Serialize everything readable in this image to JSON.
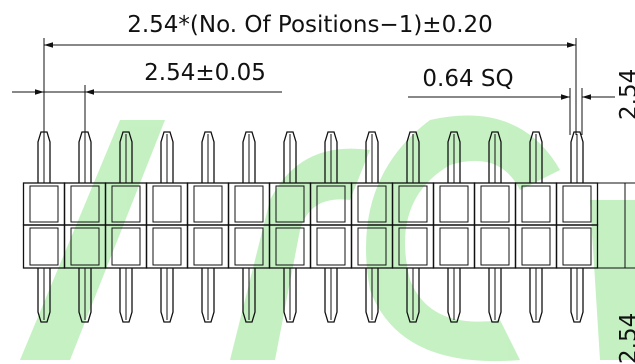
{
  "dimensions": {
    "overall": "2.54*(No. Of Positions−1)±0.20",
    "pitch": "2.54±0.05",
    "pin_size": "0.64 SQ",
    "right_top": "2.54",
    "right_bottom": "2.54"
  }
}
